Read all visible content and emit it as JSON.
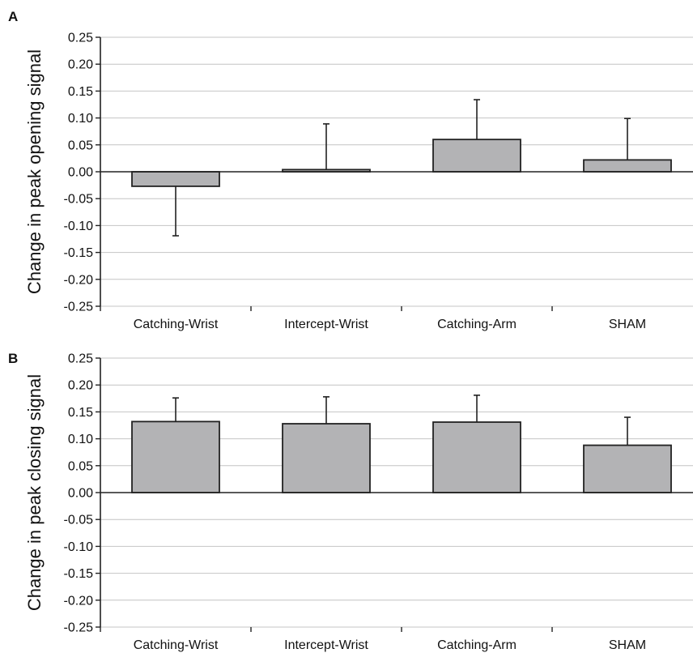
{
  "chart_data": [
    {
      "panel": "A",
      "type": "bar",
      "ylabel": "Change in peak opening signal",
      "categories": [
        "Catching-Wrist",
        "Intercept-Wrist",
        "Catching-Arm",
        "SHAM"
      ],
      "values": [
        -0.027,
        0.004,
        0.06,
        0.022
      ],
      "error_bars": [
        0.092,
        0.085,
        0.074,
        0.077
      ],
      "ylim": [
        -0.25,
        0.25
      ],
      "yticks": [
        "0.25",
        "0.20",
        "0.15",
        "0.10",
        "0.05",
        "0.00",
        "-0.05",
        "-0.10",
        "-0.15",
        "-0.20",
        "-0.25"
      ],
      "grid": true,
      "bar_color": "#b3b3b5"
    },
    {
      "panel": "B",
      "type": "bar",
      "ylabel": "Change in peak closing signal",
      "categories": [
        "Catching-Wrist",
        "Intercept-Wrist",
        "Catching-Arm",
        "SHAM"
      ],
      "values": [
        0.132,
        0.128,
        0.131,
        0.088
      ],
      "error_bars": [
        0.044,
        0.05,
        0.05,
        0.052
      ],
      "ylim": [
        -0.25,
        0.25
      ],
      "yticks": [
        "0.25",
        "0.20",
        "0.15",
        "0.10",
        "0.05",
        "0.00",
        "-0.05",
        "-0.10",
        "-0.15",
        "-0.20",
        "-0.25"
      ],
      "grid": true,
      "bar_color": "#b3b3b5"
    }
  ]
}
